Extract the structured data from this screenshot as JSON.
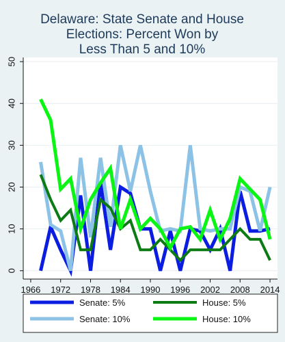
{
  "chart_data": {
    "type": "line",
    "title_lines": [
      "Delaware: State Senate and House",
      "Elections: Percent Won by",
      "Less Than 5 and 10%"
    ],
    "xlabel": "",
    "ylabel": "",
    "xlim": [
      1964.5,
      2015.5
    ],
    "ylim": [
      -2,
      51
    ],
    "x_ticks": [
      1966,
      1972,
      1978,
      1984,
      1990,
      1996,
      2002,
      2008,
      2014
    ],
    "y_ticks": [
      0,
      10,
      20,
      30,
      40,
      50
    ],
    "grid": true,
    "legend_position": "bottom",
    "series": [
      {
        "name": "Senate: 5%",
        "color": "#0a1de0",
        "width": 5,
        "x": [
          1968,
          1970,
          1972,
          1974,
          1976,
          1978,
          1980,
          1982,
          1984,
          1986,
          1988,
          1990,
          1992,
          1994,
          1996,
          1998,
          2000,
          2002,
          2004,
          2006,
          2008,
          2010,
          2012,
          2014
        ],
        "y": [
          0,
          10.5,
          5,
          0,
          18,
          0,
          21,
          5,
          20,
          18.5,
          10,
          10,
          0,
          9.5,
          0,
          10,
          9.5,
          5,
          10,
          0,
          19,
          9.5,
          9.5,
          10
        ]
      },
      {
        "name": "Senate: 10%",
        "color": "#8cc2e6",
        "width": 5,
        "x": [
          1968,
          1970,
          1972,
          1974,
          1976,
          1978,
          1980,
          1982,
          1984,
          1986,
          1988,
          1990,
          1992,
          1994,
          1996,
          1998,
          2000,
          2002,
          2004,
          2006,
          2008,
          2010,
          2012,
          2014
        ],
        "y": [
          26,
          11,
          9.5,
          0,
          27,
          8,
          27,
          10.5,
          30,
          19,
          30,
          19,
          9.5,
          10,
          9.5,
          30,
          10,
          9.5,
          10,
          10,
          20,
          19,
          9.5,
          20
        ]
      },
      {
        "name": "House: 5%",
        "color": "#0d7b14",
        "width": 4,
        "x": [
          1968,
          1970,
          1972,
          1974,
          1976,
          1978,
          1980,
          1982,
          1984,
          1986,
          1988,
          1990,
          1992,
          1994,
          1996,
          1998,
          2000,
          2002,
          2004,
          2006,
          2008,
          2010,
          2012,
          2014
        ],
        "y": [
          23,
          17,
          12,
          14.5,
          5,
          5,
          17,
          15,
          10,
          12,
          5,
          5,
          7.5,
          5,
          2.5,
          5,
          5,
          5,
          5,
          7.5,
          10,
          7.5,
          7.5,
          2.5
        ]
      },
      {
        "name": "House: 10%",
        "color": "#0af514",
        "width": 5,
        "x": [
          1968,
          1970,
          1972,
          1974,
          1976,
          1978,
          1980,
          1982,
          1984,
          1986,
          1988,
          1990,
          1992,
          1994,
          1996,
          1998,
          2000,
          2002,
          2004,
          2006,
          2008,
          2010,
          2012,
          2014
        ],
        "y": [
          41,
          36,
          19.5,
          22,
          10,
          17,
          21,
          24.5,
          10,
          17,
          10,
          12.5,
          10,
          5.5,
          10,
          10.5,
          7.5,
          14.5,
          7.5,
          12.5,
          22,
          19.5,
          17,
          7.5
        ]
      }
    ],
    "legend_order": [
      0,
      2,
      1,
      3
    ]
  }
}
